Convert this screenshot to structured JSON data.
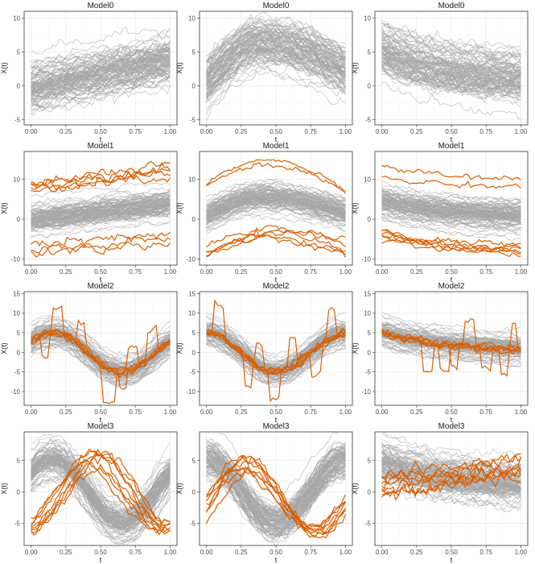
{
  "chart_data": [
    {
      "type": "line",
      "title": "Model0",
      "xlabel": "t",
      "ylabel": "X(t)",
      "xlim": [
        -0.05,
        1.05
      ],
      "ylim": [
        -5.8,
        11
      ],
      "x_ticks": [
        "0.00",
        "0.25",
        "0.50",
        "0.75",
        "1.00"
      ],
      "y_ticks": [
        -5,
        0,
        5,
        10
      ],
      "grid": true,
      "background": {
        "n": 100,
        "shape": "linear",
        "start": 0,
        "end": 4,
        "spread": 1.8
      },
      "outliers": []
    },
    {
      "type": "line",
      "title": "Model0",
      "xlabel": "t",
      "ylabel": "X(t)",
      "xlim": [
        -0.05,
        1.05
      ],
      "ylim": [
        -5.8,
        11
      ],
      "x_ticks": [
        "0.00",
        "0.25",
        "0.50",
        "0.75",
        "1.00"
      ],
      "y_ticks": [
        -5,
        0,
        5,
        10
      ],
      "grid": true,
      "background": {
        "n": 100,
        "shape": "hump",
        "start": 0.5,
        "end": 2.2,
        "peak": 6.3,
        "peak_t": 0.4,
        "spread": 1.7
      },
      "outliers": []
    },
    {
      "type": "line",
      "title": "Model0",
      "xlabel": "t",
      "ylabel": "X(t)",
      "xlim": [
        -0.05,
        1.05
      ],
      "ylim": [
        -5.8,
        11
      ],
      "x_ticks": [
        "0.00",
        "0.25",
        "0.50",
        "0.75",
        "1.00"
      ],
      "y_ticks": [
        -5,
        0,
        5,
        10
      ],
      "grid": true,
      "background": {
        "n": 100,
        "shape": "decay",
        "start": 5,
        "end": 0.3,
        "spread": 1.8
      },
      "outliers": []
    },
    {
      "type": "line",
      "title": "Model1",
      "xlabel": "t",
      "ylabel": "X(t)",
      "xlim": [
        -0.05,
        1.05
      ],
      "ylim": [
        -11.5,
        17
      ],
      "x_ticks": [
        "0.00",
        "0.25",
        "0.50",
        "0.75",
        "1.00"
      ],
      "y_ticks": [
        -10,
        0,
        10
      ],
      "grid": true,
      "background": {
        "n": 100,
        "shape": "linear",
        "start": 0,
        "end": 4,
        "spread": 1.8
      },
      "outliers": [
        {
          "shape": "linear",
          "start": 8.5,
          "end": 14.5,
          "noise": 0.55
        },
        {
          "shape": "linear",
          "start": 8.0,
          "end": 13.0,
          "noise": 0.55
        },
        {
          "shape": "linear",
          "start": 7.0,
          "end": 11.5,
          "noise": 0.55
        },
        {
          "shape": "linear",
          "start": 9.0,
          "end": 12.5,
          "noise": 0.55
        },
        {
          "shape": "linear",
          "start": 7.5,
          "end": 10.5,
          "noise": 0.55
        },
        {
          "shape": "linear",
          "start": -6.5,
          "end": -4.0,
          "noise": 0.6
        },
        {
          "shape": "linear",
          "start": -8.0,
          "end": -5.0,
          "noise": 0.6
        },
        {
          "shape": "linear",
          "start": -8.5,
          "end": -6.0,
          "noise": 0.6
        }
      ]
    },
    {
      "type": "line",
      "title": "Model1",
      "xlabel": "t",
      "ylabel": "X(t)",
      "xlim": [
        -0.05,
        1.05
      ],
      "ylim": [
        -11.5,
        17
      ],
      "x_ticks": [
        "0.00",
        "0.25",
        "0.50",
        "0.75",
        "1.00"
      ],
      "y_ticks": [
        -10,
        0,
        10
      ],
      "grid": true,
      "background": {
        "n": 100,
        "shape": "hump",
        "start": 0.8,
        "end": 1.5,
        "peak": 5.5,
        "peak_t": 0.4,
        "spread": 1.7
      },
      "outliers": [
        {
          "shape": "hump",
          "start": 9.5,
          "end": 7.5,
          "peak": 15,
          "peak_t": 0.45,
          "noise": 0.3
        },
        {
          "shape": "hump",
          "start": 8.5,
          "end": 7.0,
          "peak": 13.5,
          "peak_t": 0.42,
          "noise": 0.3
        },
        {
          "shape": "hump",
          "start": -7.0,
          "end": -5.5,
          "peak": -2.5,
          "peak_t": 0.45,
          "noise": 0.35
        },
        {
          "shape": "hump",
          "start": -8.0,
          "end": -8.0,
          "peak": -3.5,
          "peak_t": 0.45,
          "noise": 0.35
        },
        {
          "shape": "hump",
          "start": -8.5,
          "end": -8.5,
          "peak": -4.5,
          "peak_t": 0.4,
          "noise": 0.35
        },
        {
          "shape": "hump",
          "start": -9.5,
          "end": -9.0,
          "peak": -5.0,
          "peak_t": 0.4,
          "noise": 0.35
        },
        {
          "shape": "hump",
          "start": -9.0,
          "end": -7.0,
          "peak": -3.0,
          "peak_t": 0.5,
          "noise": 0.35
        }
      ]
    },
    {
      "type": "line",
      "title": "Model1",
      "xlabel": "t",
      "ylabel": "X(t)",
      "xlim": [
        -0.05,
        1.05
      ],
      "ylim": [
        -11.5,
        17
      ],
      "x_ticks": [
        "0.00",
        "0.25",
        "0.50",
        "0.75",
        "1.00"
      ],
      "y_ticks": [
        -10,
        0,
        10
      ],
      "grid": true,
      "background": {
        "n": 100,
        "shape": "decay",
        "start": 4.5,
        "end": 0.5,
        "spread": 1.8
      },
      "outliers": [
        {
          "shape": "decay",
          "start": 13.5,
          "end": 9.5,
          "noise": 0.35
        },
        {
          "shape": "decay",
          "start": 10.5,
          "end": 8.0,
          "noise": 0.35
        },
        {
          "shape": "decay",
          "start": -2.5,
          "end": -9.0,
          "noise": 0.35
        },
        {
          "shape": "decay",
          "start": -3.0,
          "end": -8.5,
          "noise": 0.35
        },
        {
          "shape": "decay",
          "start": -3.5,
          "end": -6.5,
          "noise": 0.35
        },
        {
          "shape": "decay",
          "start": -4.0,
          "end": -7.5,
          "noise": 0.35
        },
        {
          "shape": "decay",
          "start": -4.5,
          "end": -9.5,
          "noise": 0.35
        },
        {
          "shape": "decay",
          "start": -5.0,
          "end": -8.0,
          "noise": 0.35
        }
      ]
    },
    {
      "type": "line",
      "title": "Model2",
      "xlabel": "t",
      "ylabel": "X(t)",
      "xlim": [
        -0.05,
        1.05
      ],
      "ylim": [
        -13.5,
        15.5
      ],
      "x_ticks": [
        "0.00",
        "0.25",
        "0.50",
        "0.75",
        "1.00"
      ],
      "y_ticks": [
        -10,
        -5,
        0,
        5,
        10,
        15
      ],
      "grid": true,
      "background": {
        "n": 100,
        "shape": "sine",
        "amp": 5,
        "phase": 0,
        "offset": 0,
        "spread": 1.5
      },
      "outliers": [
        {
          "shape": "sine",
          "amp": 5,
          "phase": 0,
          "offset": 0,
          "noise": 0.5,
          "jump_start": 0.15,
          "jump_end": 0.22,
          "jump": 6.5
        },
        {
          "shape": "sine",
          "amp": 5,
          "phase": 0,
          "offset": 0,
          "noise": 0.5,
          "jump_start": 0.08,
          "jump_end": 0.12,
          "jump": -6
        },
        {
          "shape": "sine",
          "amp": 5,
          "phase": 0,
          "offset": 0,
          "noise": 0.5,
          "jump_start": 0.52,
          "jump_end": 0.6,
          "jump": -8
        },
        {
          "shape": "sine",
          "amp": 5,
          "phase": 0,
          "offset": 0,
          "noise": 0.5,
          "jump_start": 0.63,
          "jump_end": 0.68,
          "jump": -5
        },
        {
          "shape": "sine",
          "amp": 5,
          "phase": 0,
          "offset": 0,
          "noise": 0.5,
          "jump_start": 0.84,
          "jump_end": 0.9,
          "jump": 7
        },
        {
          "shape": "sine",
          "amp": 5,
          "phase": 0,
          "offset": 0,
          "noise": 0.5,
          "jump_start": 0.33,
          "jump_end": 0.38,
          "jump": 6
        },
        {
          "shape": "sine",
          "amp": 5,
          "phase": 0,
          "offset": 0,
          "noise": 0.5,
          "jump_start": 0.7,
          "jump_end": 0.76,
          "jump": 6
        }
      ]
    },
    {
      "type": "line",
      "title": "Model2",
      "xlabel": "t",
      "ylabel": "X(t)",
      "xlim": [
        -0.05,
        1.05
      ],
      "ylim": [
        -13.5,
        15.5
      ],
      "x_ticks": [
        "0.00",
        "0.25",
        "0.50",
        "0.75",
        "1.00"
      ],
      "y_ticks": [
        -10,
        -5,
        0,
        5,
        10,
        15
      ],
      "grid": true,
      "background": {
        "n": 100,
        "shape": "cosine",
        "amp": 5,
        "offset": 0,
        "spread": 1.5
      },
      "outliers": [
        {
          "shape": "cosine",
          "amp": 5,
          "offset": 0,
          "noise": 0.5,
          "jump_start": 0.05,
          "jump_end": 0.12,
          "jump": 8
        },
        {
          "shape": "cosine",
          "amp": 5,
          "offset": 0,
          "noise": 0.5,
          "jump_start": 0.27,
          "jump_end": 0.33,
          "jump": -7
        },
        {
          "shape": "cosine",
          "amp": 5,
          "offset": 0,
          "noise": 0.5,
          "jump_start": 0.45,
          "jump_end": 0.52,
          "jump": -7
        },
        {
          "shape": "cosine",
          "amp": 5,
          "offset": 0,
          "noise": 0.5,
          "jump_start": 0.6,
          "jump_end": 0.65,
          "jump": 7
        },
        {
          "shape": "cosine",
          "amp": 5,
          "offset": 0,
          "noise": 0.5,
          "jump_start": 0.75,
          "jump_end": 0.82,
          "jump": -7
        },
        {
          "shape": "cosine",
          "amp": 5,
          "offset": 0,
          "noise": 0.5,
          "jump_start": 0.88,
          "jump_end": 0.92,
          "jump": 7
        },
        {
          "shape": "cosine",
          "amp": 5,
          "offset": 0,
          "noise": 0.5,
          "jump_start": 0.35,
          "jump_end": 0.4,
          "jump": 6
        }
      ]
    },
    {
      "type": "line",
      "title": "Model2",
      "xlabel": "t",
      "ylabel": "X(t)",
      "xlim": [
        -0.05,
        1.05
      ],
      "ylim": [
        -13.5,
        15.5
      ],
      "x_ticks": [
        "0.00",
        "0.25",
        "0.50",
        "0.75",
        "1.00"
      ],
      "y_ticks": [
        -10,
        -5,
        0,
        5,
        10,
        15
      ],
      "grid": true,
      "background": {
        "n": 100,
        "shape": "decay",
        "start": 5,
        "end": 0.3,
        "spread": 1.6
      },
      "outliers": [
        {
          "shape": "decay",
          "start": 5,
          "end": 0.3,
          "noise": 0.5,
          "jump_start": 0.3,
          "jump_end": 0.36,
          "jump": -8
        },
        {
          "shape": "decay",
          "start": 5,
          "end": 0.3,
          "noise": 0.5,
          "jump_start": 0.42,
          "jump_end": 0.48,
          "jump": -7
        },
        {
          "shape": "decay",
          "start": 5,
          "end": 0.3,
          "noise": 0.5,
          "jump_start": 0.5,
          "jump_end": 0.55,
          "jump": -6
        },
        {
          "shape": "decay",
          "start": 5,
          "end": 0.3,
          "noise": 0.5,
          "jump_start": 0.6,
          "jump_end": 0.66,
          "jump": 7
        },
        {
          "shape": "decay",
          "start": 5,
          "end": 0.3,
          "noise": 0.5,
          "jump_start": 0.72,
          "jump_end": 0.78,
          "jump": -6
        },
        {
          "shape": "decay",
          "start": 5,
          "end": 0.3,
          "noise": 0.5,
          "jump_start": 0.85,
          "jump_end": 0.9,
          "jump": -7
        },
        {
          "shape": "decay",
          "start": 5,
          "end": 0.3,
          "noise": 0.5,
          "jump_start": 0.93,
          "jump_end": 0.97,
          "jump": 6
        }
      ]
    },
    {
      "type": "line",
      "title": "Model3",
      "xlabel": "t",
      "ylabel": "X(t)",
      "xlim": [
        -0.05,
        1.05
      ],
      "ylim": [
        -8.5,
        9.5
      ],
      "x_ticks": [
        "0.00",
        "0.25",
        "0.50",
        "0.75",
        "1.00"
      ],
      "y_ticks": [
        -5,
        0,
        5
      ],
      "grid": true,
      "background": {
        "n": 100,
        "shape": "sine",
        "amp": 5,
        "phase": 0,
        "offset": 0,
        "spread": 1.4
      },
      "outliers": [
        {
          "shape": "sine",
          "amp": 6,
          "phase": 2.0,
          "offset": 0.5,
          "noise": 0.35
        },
        {
          "shape": "sine",
          "amp": 5.5,
          "phase": 1.8,
          "offset": 0,
          "noise": 0.35
        },
        {
          "shape": "sine",
          "amp": 5.5,
          "phase": 2.2,
          "offset": 0.3,
          "noise": 0.35
        },
        {
          "shape": "sine",
          "amp": 5,
          "phase": 1.6,
          "offset": -0.5,
          "noise": 0.35
        },
        {
          "shape": "sine",
          "amp": 6,
          "phase": 2.4,
          "offset": 0,
          "noise": 0.35
        },
        {
          "shape": "sine",
          "amp": 5,
          "phase": 1.5,
          "offset": -1,
          "noise": 0.35
        },
        {
          "shape": "sine",
          "amp": 5.5,
          "phase": 2.1,
          "offset": -0.3,
          "noise": 0.35
        },
        {
          "shape": "sine",
          "amp": 4.5,
          "phase": 1.9,
          "offset": -1.5,
          "noise": 0.35
        }
      ]
    },
    {
      "type": "line",
      "title": "Model3",
      "xlabel": "t",
      "ylabel": "X(t)",
      "xlim": [
        -0.05,
        1.05
      ],
      "ylim": [
        -8.5,
        9.5
      ],
      "x_ticks": [
        "0.00",
        "0.25",
        "0.50",
        "0.75",
        "1.00"
      ],
      "y_ticks": [
        -5,
        0,
        5
      ],
      "grid": true,
      "background": {
        "n": 100,
        "shape": "cosine",
        "amp": 5,
        "offset": 0,
        "spread": 1.4
      },
      "outliers": [
        {
          "shape": "sine",
          "amp": 5.5,
          "phase": 0.8,
          "offset": -0.5,
          "noise": 0.35
        },
        {
          "shape": "sine",
          "amp": 5,
          "phase": 0.6,
          "offset": -1,
          "noise": 0.35
        },
        {
          "shape": "sine",
          "amp": 6,
          "phase": 1.0,
          "offset": -0.5,
          "noise": 0.35
        },
        {
          "shape": "sine",
          "amp": 5,
          "phase": 0.9,
          "offset": -1.5,
          "noise": 0.35
        },
        {
          "shape": "sine",
          "amp": 5.5,
          "phase": 0.7,
          "offset": 0,
          "noise": 0.35
        },
        {
          "shape": "sine",
          "amp": 4.5,
          "phase": 0.5,
          "offset": -1,
          "noise": 0.35
        },
        {
          "shape": "sine",
          "amp": 5,
          "phase": 1.1,
          "offset": -2,
          "noise": 0.35
        },
        {
          "shape": "sine",
          "amp": 6,
          "phase": 0.85,
          "offset": -1,
          "noise": 0.35
        }
      ]
    },
    {
      "type": "line",
      "title": "Model3",
      "xlabel": "t",
      "ylabel": "X(t)",
      "xlim": [
        -0.05,
        1.05
      ],
      "ylim": [
        -8.5,
        9.5
      ],
      "x_ticks": [
        "0.00",
        "0.25",
        "0.50",
        "0.75",
        "1.00"
      ],
      "y_ticks": [
        -5,
        0,
        5
      ],
      "grid": true,
      "background": {
        "n": 100,
        "shape": "decay",
        "start": 4.8,
        "end": 1.0,
        "spread": 1.6
      },
      "outliers": [
        {
          "shape": "linear",
          "start": 1.5,
          "end": 4.5,
          "noise": 0.5
        },
        {
          "shape": "linear",
          "start": 0.5,
          "end": 4.0,
          "noise": 0.5
        },
        {
          "shape": "linear",
          "start": -1.0,
          "end": 3.5,
          "noise": 0.5
        },
        {
          "shape": "linear",
          "start": 2.5,
          "end": 5.5,
          "noise": 0.5
        },
        {
          "shape": "linear",
          "start": 0.0,
          "end": 3.0,
          "noise": 0.5
        },
        {
          "shape": "linear",
          "start": -0.5,
          "end": 2.5,
          "noise": 0.5
        },
        {
          "shape": "linear",
          "start": 1.0,
          "end": 5.0,
          "noise": 0.5
        },
        {
          "shape": "linear",
          "start": 2.0,
          "end": 3.5,
          "noise": 0.5
        }
      ]
    }
  ],
  "colors": {
    "background_curve": "#a6a6a6",
    "outlier_curve": "#d95f02",
    "panel_border": "#333333",
    "grid_major": "#ebebeb",
    "grid_minor": "#f5f5f5"
  }
}
